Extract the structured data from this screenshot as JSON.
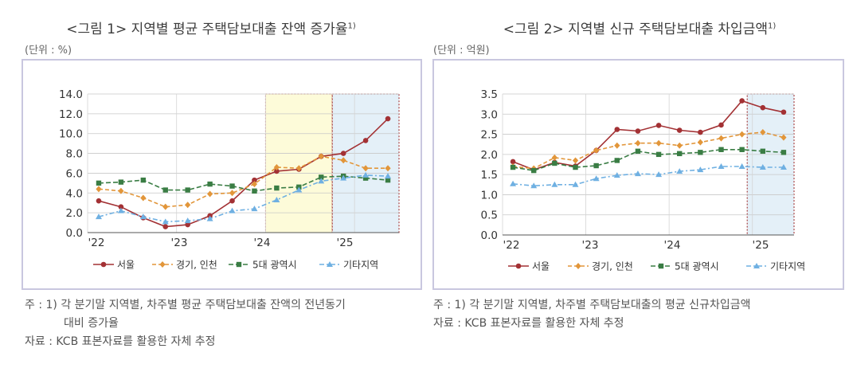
{
  "charts": [
    {
      "title": "<그림 1> 지역별 평균 주택담보대출 잔액 증가율",
      "title_note": "1)",
      "unit": "(단위 : %)",
      "notes": [
        "주 : 1) 각 분기말 지역별, 차주별 평균 주택담보대출 잔액의 전년동기",
        "대비 증가율",
        "자료 : KCB 표본자료를 활용한 자체 추정"
      ]
    },
    {
      "title": "<그림 2> 지역별 신규 주택담보대출 차입금액",
      "title_note": "1)",
      "unit": "(단위 : 억원)",
      "notes": [
        "주 : 1) 각 분기말 지역별, 차주별 주택담보대출의 평균 신규차입금액",
        "자료 : KCB 표본자료를 활용한 자체 추정"
      ]
    }
  ],
  "chart_data": [
    {
      "type": "line",
      "xlabels": [
        "'22",
        "'23",
        "'24",
        "'25"
      ],
      "x": [
        0,
        1,
        2,
        3,
        4,
        5,
        6,
        7,
        8,
        9,
        10,
        11,
        12,
        13
      ],
      "ylim": [
        0,
        14
      ],
      "yticks": [
        "0.0",
        "2.0",
        "4.0",
        "6.0",
        "8.0",
        "10.0",
        "12.0",
        "14.0"
      ],
      "ytick_values": [
        0,
        2,
        4,
        6,
        8,
        10,
        12,
        14
      ],
      "grid": true,
      "legend": "bottom",
      "shaded": [
        {
          "from": 8,
          "to": 11,
          "color": "#fdfbd9",
          "border": "#c0392b"
        },
        {
          "from": 11,
          "to": 14,
          "color": "#e4f0f8",
          "border": "#9a1f1f"
        }
      ],
      "series": [
        {
          "name": "서울",
          "color": "#a33134",
          "marker": "circle",
          "dash": "",
          "values": [
            3.2,
            2.6,
            1.5,
            0.6,
            0.8,
            1.7,
            3.2,
            5.3,
            6.2,
            6.4,
            7.7,
            8.0,
            9.3,
            11.5
          ]
        },
        {
          "name": "경기, 인천",
          "color": "#e2963a",
          "marker": "diamond",
          "dash": "5,3",
          "values": [
            4.4,
            4.2,
            3.5,
            2.6,
            2.8,
            3.9,
            4.0,
            4.9,
            6.6,
            6.5,
            7.7,
            7.3,
            6.5,
            6.5
          ]
        },
        {
          "name": "5대 광역시",
          "color": "#3a7d44",
          "marker": "square",
          "dash": "6,3",
          "values": [
            5.0,
            5.1,
            5.3,
            4.3,
            4.3,
            4.9,
            4.7,
            4.2,
            4.5,
            4.6,
            5.6,
            5.7,
            5.5,
            5.3
          ]
        },
        {
          "name": "기타지역",
          "color": "#6fb0e2",
          "marker": "triangle",
          "dash": "6,3,2,3",
          "values": [
            1.6,
            2.2,
            1.6,
            1.1,
            1.2,
            1.4,
            2.2,
            2.4,
            3.3,
            4.3,
            5.2,
            5.5,
            5.8,
            5.7
          ]
        }
      ]
    },
    {
      "type": "line",
      "xlabels": [
        "'22",
        "'23",
        "'24",
        "'25"
      ],
      "x": [
        0,
        1,
        2,
        3,
        4,
        5,
        6,
        7,
        8,
        9,
        10,
        11,
        12,
        13
      ],
      "ylim": [
        0,
        3.5
      ],
      "yticks": [
        "0.0",
        "0.5",
        "1.0",
        "1.5",
        "2.0",
        "2.5",
        "3.0",
        "3.5"
      ],
      "ytick_values": [
        0,
        0.5,
        1.0,
        1.5,
        2.0,
        2.5,
        3.0,
        3.5
      ],
      "grid": true,
      "legend": "bottom",
      "shaded": [
        {
          "from": 11.75,
          "to": 14,
          "color": "#e4f0f8",
          "border": "#9a1f1f"
        }
      ],
      "series": [
        {
          "name": "서울",
          "color": "#a33134",
          "marker": "circle",
          "dash": "",
          "values": [
            1.82,
            1.62,
            1.8,
            1.71,
            2.1,
            2.62,
            2.58,
            2.72,
            2.6,
            2.55,
            2.73,
            3.33,
            3.16,
            3.05
          ]
        },
        {
          "name": "경기, 인천",
          "color": "#e2963a",
          "marker": "diamond",
          "dash": "5,3",
          "values": [
            1.7,
            1.65,
            1.92,
            1.85,
            2.1,
            2.22,
            2.28,
            2.28,
            2.22,
            2.3,
            2.4,
            2.5,
            2.55,
            2.42
          ]
        },
        {
          "name": "5대 광역시",
          "color": "#3a7d44",
          "marker": "square",
          "dash": "6,3",
          "values": [
            1.68,
            1.6,
            1.78,
            1.68,
            1.72,
            1.85,
            2.08,
            2.0,
            2.02,
            2.05,
            2.12,
            2.12,
            2.08,
            2.05
          ]
        },
        {
          "name": "기타지역",
          "color": "#6fb0e2",
          "marker": "triangle",
          "dash": "6,3,2,3",
          "values": [
            1.27,
            1.22,
            1.25,
            1.25,
            1.4,
            1.48,
            1.52,
            1.5,
            1.58,
            1.62,
            1.7,
            1.7,
            1.68,
            1.68
          ]
        }
      ]
    }
  ]
}
